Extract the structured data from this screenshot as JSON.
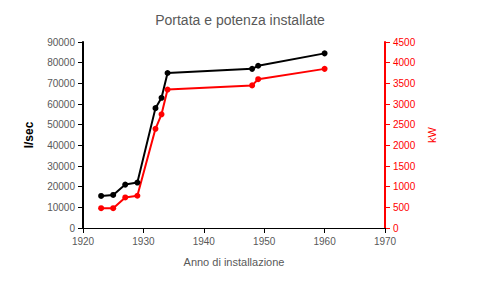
{
  "chart_data": {
    "type": "line",
    "title": "Portata e potenza installate",
    "x_label": "Anno di installazione",
    "y_label": "l/sec",
    "y2_label": "kW",
    "xlim": [
      1920,
      1970
    ],
    "xticks": [
      1920,
      1930,
      1940,
      1950,
      1960,
      1970
    ],
    "ylim": [
      0,
      90000
    ],
    "yticks": [
      0,
      10000,
      20000,
      30000,
      40000,
      50000,
      60000,
      70000,
      80000,
      90000
    ],
    "y2lim": [
      0,
      4500
    ],
    "y2ticks": [
      0,
      500,
      1000,
      1500,
      2000,
      2500,
      3000,
      3500,
      4000,
      4500
    ],
    "grid": false,
    "series": [
      {
        "color": "#000000",
        "marker": "circle",
        "line_style": "solid",
        "x": [
          1923,
          1925,
          1927,
          1929,
          1932,
          1933,
          1934,
          1948,
          1949,
          1960
        ],
        "values": [
          15500,
          16000,
          21000,
          22000,
          58000,
          63000,
          75000,
          77000,
          78500,
          84500
        ]
      },
      {
        "color": "#ff0000",
        "marker": "circle",
        "line_style": "solid",
        "axis": "y2",
        "x": [
          1923,
          1925,
          1927,
          1929,
          1932,
          1933,
          1934,
          1948,
          1949,
          1960
        ],
        "values": [
          480,
          480,
          740,
          780,
          2400,
          2750,
          3350,
          3450,
          3600,
          3850
        ]
      }
    ]
  }
}
